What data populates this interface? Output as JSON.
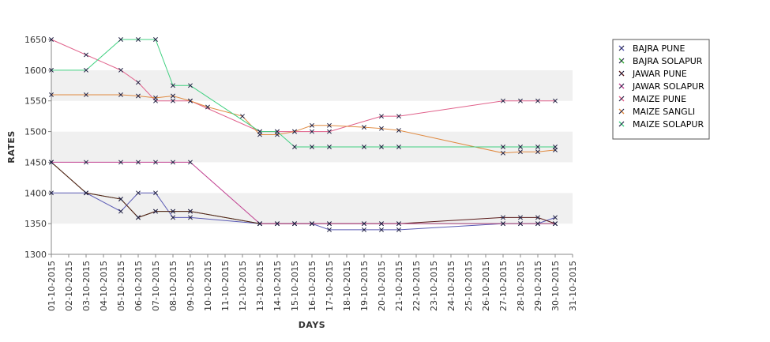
{
  "chart_data": {
    "type": "line",
    "xlabel": "DAYS",
    "ylabel": "RATES",
    "ylim": [
      1300,
      1650
    ],
    "yticks": [
      1300,
      1350,
      1400,
      1450,
      1500,
      1550,
      1600,
      1650
    ],
    "x_categories": [
      "01-10-2015",
      "02-10-2015",
      "03-10-2015",
      "04-10-2015",
      "05-10-2015",
      "06-10-2015",
      "07-10-2015",
      "08-10-2015",
      "09-10-2015",
      "10-10-2015",
      "11-10-2015",
      "12-10-2015",
      "13-10-2015",
      "14-10-2015",
      "15-10-2015",
      "16-10-2015",
      "17-10-2015",
      "18-10-2015",
      "19-10-2015",
      "20-10-2015",
      "21-10-2015",
      "22-10-2015",
      "23-10-2015",
      "24-10-2015",
      "25-10-2015",
      "26-10-2015",
      "27-10-2015",
      "28-10-2015",
      "29-10-2015",
      "30-10-2015",
      "31-10-2015"
    ],
    "grid_bands": true,
    "legend_position": "top-right",
    "series": [
      {
        "name": "BAJRA PUNE",
        "color": "#5a5ab4",
        "points": [
          [
            1,
            1400
          ],
          [
            3,
            1400
          ],
          [
            5,
            1370
          ],
          [
            6,
            1400
          ],
          [
            7,
            1400
          ],
          [
            8,
            1360
          ],
          [
            9,
            1360
          ],
          [
            13,
            1350
          ],
          [
            14,
            1350
          ],
          [
            15,
            1350
          ],
          [
            16,
            1350
          ],
          [
            17,
            1340
          ],
          [
            19,
            1340
          ],
          [
            20,
            1340
          ],
          [
            21,
            1340
          ],
          [
            27,
            1350
          ],
          [
            28,
            1350
          ],
          [
            29,
            1350
          ],
          [
            30,
            1360
          ]
        ]
      },
      {
        "name": "BAJRA SOLAPUR",
        "color": "#33aa33",
        "points": [
          [
            1,
            1450
          ],
          [
            3,
            1400
          ],
          [
            5,
            1390
          ],
          [
            6,
            1360
          ],
          [
            7,
            1370
          ],
          [
            8,
            1370
          ],
          [
            9,
            1370
          ],
          [
            13,
            1350
          ],
          [
            30,
            1350
          ]
        ]
      },
      {
        "name": "JAWAR PUNE",
        "color": "#5a1a1a",
        "points": [
          [
            1,
            1450
          ],
          [
            3,
            1400
          ],
          [
            5,
            1390
          ],
          [
            6,
            1360
          ],
          [
            7,
            1370
          ],
          [
            8,
            1370
          ],
          [
            9,
            1370
          ],
          [
            13,
            1350
          ],
          [
            14,
            1350
          ],
          [
            15,
            1350
          ],
          [
            16,
            1350
          ],
          [
            17,
            1350
          ],
          [
            19,
            1350
          ],
          [
            20,
            1350
          ],
          [
            21,
            1350
          ],
          [
            27,
            1360
          ],
          [
            28,
            1360
          ],
          [
            29,
            1360
          ],
          [
            30,
            1350
          ]
        ]
      },
      {
        "name": "JAWAR SOLAPUR",
        "color": "#c04090",
        "points": [
          [
            1,
            1450
          ],
          [
            3,
            1450
          ],
          [
            5,
            1450
          ],
          [
            6,
            1450
          ],
          [
            7,
            1450
          ],
          [
            8,
            1450
          ],
          [
            9,
            1450
          ],
          [
            13,
            1350
          ],
          [
            14,
            1350
          ],
          [
            15,
            1350
          ],
          [
            16,
            1350
          ],
          [
            17,
            1350
          ],
          [
            19,
            1350
          ],
          [
            20,
            1350
          ],
          [
            21,
            1350
          ],
          [
            27,
            1350
          ],
          [
            28,
            1350
          ],
          [
            29,
            1350
          ],
          [
            30,
            1350
          ]
        ]
      },
      {
        "name": "MAIZE PUNE",
        "color": "#e0608a",
        "points": [
          [
            1,
            1650
          ],
          [
            3,
            1625
          ],
          [
            5,
            1600
          ],
          [
            6,
            1580
          ],
          [
            7,
            1550
          ],
          [
            8,
            1550
          ],
          [
            9,
            1550
          ],
          [
            13,
            1500
          ],
          [
            14,
            1500
          ],
          [
            15,
            1500
          ],
          [
            16,
            1500
          ],
          [
            17,
            1500
          ],
          [
            20,
            1525
          ],
          [
            21,
            1525
          ],
          [
            27,
            1550
          ],
          [
            28,
            1550
          ],
          [
            29,
            1550
          ],
          [
            30,
            1550
          ]
        ]
      },
      {
        "name": "MAIZE SANGLI",
        "color": "#e08a40",
        "points": [
          [
            1,
            1560
          ],
          [
            3,
            1560
          ],
          [
            5,
            1560
          ],
          [
            6,
            1558
          ],
          [
            7,
            1555
          ],
          [
            8,
            1558
          ],
          [
            9,
            1550
          ],
          [
            10,
            1540
          ],
          [
            12,
            1525
          ],
          [
            13,
            1495
          ],
          [
            14,
            1495
          ],
          [
            15,
            1500
          ],
          [
            16,
            1510
          ],
          [
            17,
            1510
          ],
          [
            19,
            1507
          ],
          [
            20,
            1505
          ],
          [
            21,
            1502
          ],
          [
            27,
            1465
          ],
          [
            28,
            1467
          ],
          [
            29,
            1467
          ],
          [
            30,
            1470
          ]
        ]
      },
      {
        "name": "MAIZE SOLAPUR",
        "color": "#40d080",
        "points": [
          [
            1,
            1600
          ],
          [
            3,
            1600
          ],
          [
            5,
            1650
          ],
          [
            6,
            1650
          ],
          [
            7,
            1650
          ],
          [
            8,
            1575
          ],
          [
            9,
            1575
          ],
          [
            13,
            1500
          ],
          [
            14,
            1500
          ],
          [
            15,
            1475
          ],
          [
            16,
            1475
          ],
          [
            17,
            1475
          ],
          [
            19,
            1475
          ],
          [
            20,
            1475
          ],
          [
            21,
            1475
          ],
          [
            27,
            1475
          ],
          [
            28,
            1475
          ],
          [
            29,
            1475
          ],
          [
            30,
            1475
          ]
        ]
      }
    ]
  }
}
